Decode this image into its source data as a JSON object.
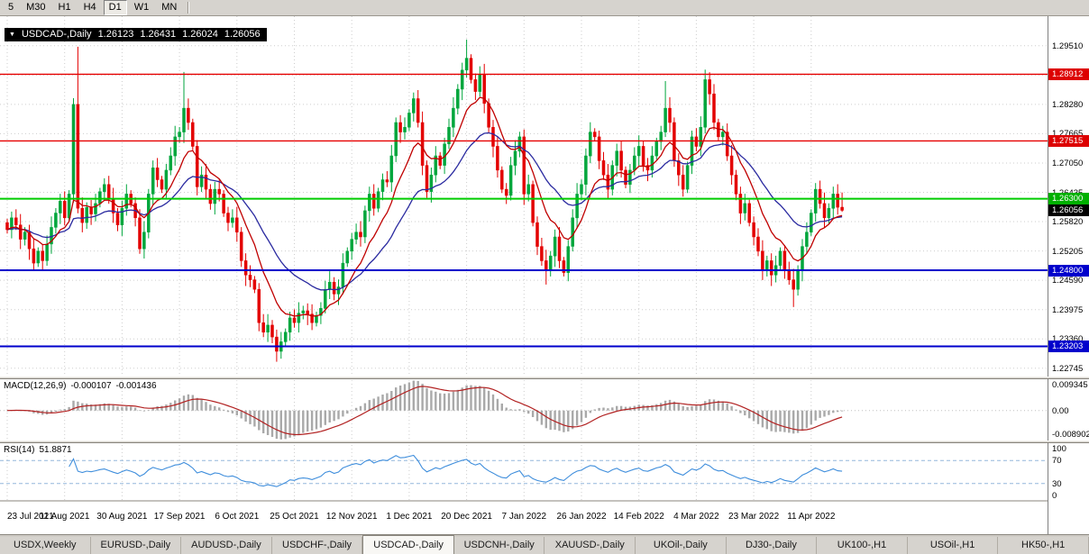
{
  "icons": {
    "dropdown": "▼"
  },
  "toolbar": {
    "periods": [
      {
        "label": "5",
        "active": false
      },
      {
        "label": "M30",
        "active": false
      },
      {
        "label": "H1",
        "active": false
      },
      {
        "label": "H4",
        "active": false
      },
      {
        "label": "D1",
        "active": true
      },
      {
        "label": "W1",
        "active": false
      },
      {
        "label": "MN",
        "active": false
      }
    ]
  },
  "chart": {
    "symbol_period": "USDCAD-,Daily",
    "open": "1.26123",
    "high": "1.26431",
    "low": "1.26024",
    "close": "1.26056"
  },
  "indicators": {
    "macd": {
      "label": "MACD(12,26,9)",
      "value1": "-0.000107",
      "value2": "-0.001436",
      "axis": [
        "0.009345",
        "0.00",
        "-0.008902"
      ]
    },
    "rsi": {
      "label": "RSI(14)",
      "value": "51.8871",
      "axis": [
        "100",
        "70",
        "30",
        "0"
      ],
      "levels": [
        70,
        30
      ]
    }
  },
  "price_axis": {
    "ticks": [
      {
        "label": "1.29510",
        "value": 1.2951
      },
      {
        "label": "1.28280",
        "value": 1.2828
      },
      {
        "label": "1.27665",
        "value": 1.27665
      },
      {
        "label": "1.27050",
        "value": 1.2705
      },
      {
        "label": "1.26435",
        "value": 1.26435
      },
      {
        "label": "1.25820",
        "value": 1.2582
      },
      {
        "label": "1.25205",
        "value": 1.25205
      },
      {
        "label": "1.24590",
        "value": 1.2459
      },
      {
        "label": "1.23975",
        "value": 1.23975
      },
      {
        "label": "1.23360",
        "value": 1.2336
      },
      {
        "label": "1.22745",
        "value": 1.22745
      }
    ],
    "markers": [
      {
        "label": "1.28912",
        "value": 1.28912,
        "bg": "#dd0000"
      },
      {
        "label": "1.27515",
        "value": 1.27515,
        "bg": "#dd0000"
      },
      {
        "label": "1.26300",
        "value": 1.263,
        "bg": "#00b000"
      },
      {
        "label": "1.26056",
        "value": 1.26056,
        "bg": "#000000"
      },
      {
        "label": "1.24800",
        "value": 1.248,
        "bg": "#0000cc"
      },
      {
        "label": "1.23203",
        "value": 1.23203,
        "bg": "#0000cc"
      }
    ]
  },
  "time_axis": {
    "labels": [
      {
        "text": "23 Jul 2021",
        "index": 0
      },
      {
        "text": "11 Aug 2021",
        "index": 13
      },
      {
        "text": "30 Aug 2021",
        "index": 26
      },
      {
        "text": "17 Sep 2021",
        "index": 39
      },
      {
        "text": "6 Oct 2021",
        "index": 52
      },
      {
        "text": "25 Oct 2021",
        "index": 65
      },
      {
        "text": "12 Nov 2021",
        "index": 78
      },
      {
        "text": "1 Dec 2021",
        "index": 91
      },
      {
        "text": "20 Dec 2021",
        "index": 104
      },
      {
        "text": "7 Jan 2022",
        "index": 117
      },
      {
        "text": "26 Jan 2022",
        "index": 130
      },
      {
        "text": "14 Feb 2022",
        "index": 143
      },
      {
        "text": "4 Mar 2022",
        "index": 156
      },
      {
        "text": "23 Mar 2022",
        "index": 169
      },
      {
        "text": "11 Apr 2022",
        "index": 182
      }
    ]
  },
  "tabs": [
    {
      "label": "USDX,Weekly",
      "active": false
    },
    {
      "label": "EURUSD-,Daily",
      "active": false
    },
    {
      "label": "AUDUSD-,Daily",
      "active": false
    },
    {
      "label": "USDCHF-,Daily",
      "active": false
    },
    {
      "label": "USDCAD-,Daily",
      "active": true
    },
    {
      "label": "USDCNH-,Daily",
      "active": false
    },
    {
      "label": "XAUUSD-,Daily",
      "active": false
    },
    {
      "label": "UKOil-,Daily",
      "active": false
    },
    {
      "label": "DJ30-,Daily",
      "active": false
    },
    {
      "label": "UK100-,H1",
      "active": false
    },
    {
      "label": "USOil-,H1",
      "active": false
    },
    {
      "label": "HK50-,H1",
      "active": false
    }
  ],
  "chart_data": {
    "type": "candlestick",
    "symbol": "USDCAD-",
    "timeframe": "Daily",
    "title": "USDCAD-,Daily 1.26123 1.26431 1.26024 1.26056",
    "ylim": [
      1.2257,
      1.3013
    ],
    "grid_values": [
      1.2951,
      1.28895,
      1.2828,
      1.27665,
      1.2705,
      1.26435,
      1.2582,
      1.25205,
      1.2459,
      1.23975,
      1.2336,
      1.22745
    ],
    "open_first": 1.258,
    "closes": [
      1.2565,
      1.259,
      1.2575,
      1.2545,
      1.256,
      1.2525,
      1.2495,
      1.252,
      1.25,
      1.2535,
      1.257,
      1.26,
      1.2625,
      1.259,
      1.264,
      1.2828,
      1.261,
      1.258,
      1.2612,
      1.2598,
      1.262,
      1.2645,
      1.266,
      1.263,
      1.26,
      1.2575,
      1.261,
      1.264,
      1.262,
      1.259,
      1.2525,
      1.256,
      1.264,
      1.2695,
      1.267,
      1.265,
      1.269,
      1.272,
      1.276,
      1.277,
      1.282,
      1.279,
      1.274,
      1.2655,
      1.268,
      1.265,
      1.262,
      1.265,
      1.264,
      1.26,
      1.258,
      1.259,
      1.256,
      1.25,
      1.247,
      1.246,
      1.244,
      1.237,
      1.235,
      1.2365,
      1.234,
      1.231,
      1.233,
      1.235,
      1.238,
      1.237,
      1.239,
      1.2395,
      1.2388,
      1.237,
      1.2385,
      1.24,
      1.244,
      1.2455,
      1.243,
      1.2445,
      1.2495,
      1.252,
      1.2545,
      1.256,
      1.255,
      1.2605,
      1.264,
      1.261,
      1.2645,
      1.267,
      1.2665,
      1.272,
      1.279,
      1.277,
      1.278,
      1.281,
      1.284,
      1.279,
      1.27,
      1.2645,
      1.268,
      1.272,
      1.27,
      1.2745,
      1.278,
      1.282,
      1.286,
      1.29,
      1.2925,
      1.288,
      1.2855,
      1.289,
      1.283,
      1.278,
      1.274,
      1.269,
      1.265,
      1.2637,
      1.27,
      1.273,
      1.276,
      1.264,
      1.266,
      1.258,
      1.253,
      1.25,
      1.248,
      1.251,
      1.255,
      1.25,
      1.2475,
      1.253,
      1.259,
      1.264,
      1.266,
      1.272,
      1.277,
      1.276,
      1.271,
      1.268,
      1.265,
      1.27,
      1.273,
      1.269,
      1.266,
      1.269,
      1.272,
      1.274,
      1.27,
      1.269,
      1.272,
      1.275,
      1.277,
      1.282,
      1.279,
      1.271,
      1.268,
      1.265,
      1.27,
      1.276,
      1.274,
      1.278,
      1.288,
      1.285,
      1.279,
      1.276,
      1.277,
      1.272,
      1.268,
      1.264,
      1.26,
      1.262,
      1.258,
      1.255,
      1.252,
      1.248,
      1.25,
      1.247,
      1.249,
      1.252,
      1.248,
      1.246,
      1.244,
      1.248,
      1.253,
      1.256,
      1.26,
      1.265,
      1.262,
      1.259,
      1.261,
      1.264,
      1.26123,
      1.26056
    ],
    "wick_overrides": {
      "16": [
        1.2949,
        null
      ],
      "40": [
        1.2896,
        null
      ],
      "61": [
        null,
        1.2288
      ],
      "104": [
        1.2964,
        null
      ],
      "122": [
        null,
        1.245
      ],
      "149": [
        1.2877,
        null
      ],
      "158": [
        1.2901,
        null
      ],
      "178": [
        null,
        1.2403
      ],
      "189": [
        1.26431,
        1.26024
      ]
    },
    "hlines": [
      {
        "value": 1.28912,
        "color": "#e60000",
        "w": 1.4
      },
      {
        "value": 1.27515,
        "color": "#e60000",
        "w": 1.4
      },
      {
        "value": 1.263,
        "color": "#00cc00",
        "w": 2
      },
      {
        "value": 1.248,
        "color": "#0000cc",
        "w": 2
      },
      {
        "value": 1.23203,
        "color": "#0000cc",
        "w": 2
      }
    ],
    "ma_colors": {
      "fast": "#c00000",
      "slow": "#2a2aa0"
    },
    "candle_colors": {
      "up": "#00a63c",
      "down": "#e30000"
    },
    "macd_ylim": [
      -0.0089,
      0.0093
    ],
    "rsi_ylim": [
      0,
      100
    ]
  }
}
